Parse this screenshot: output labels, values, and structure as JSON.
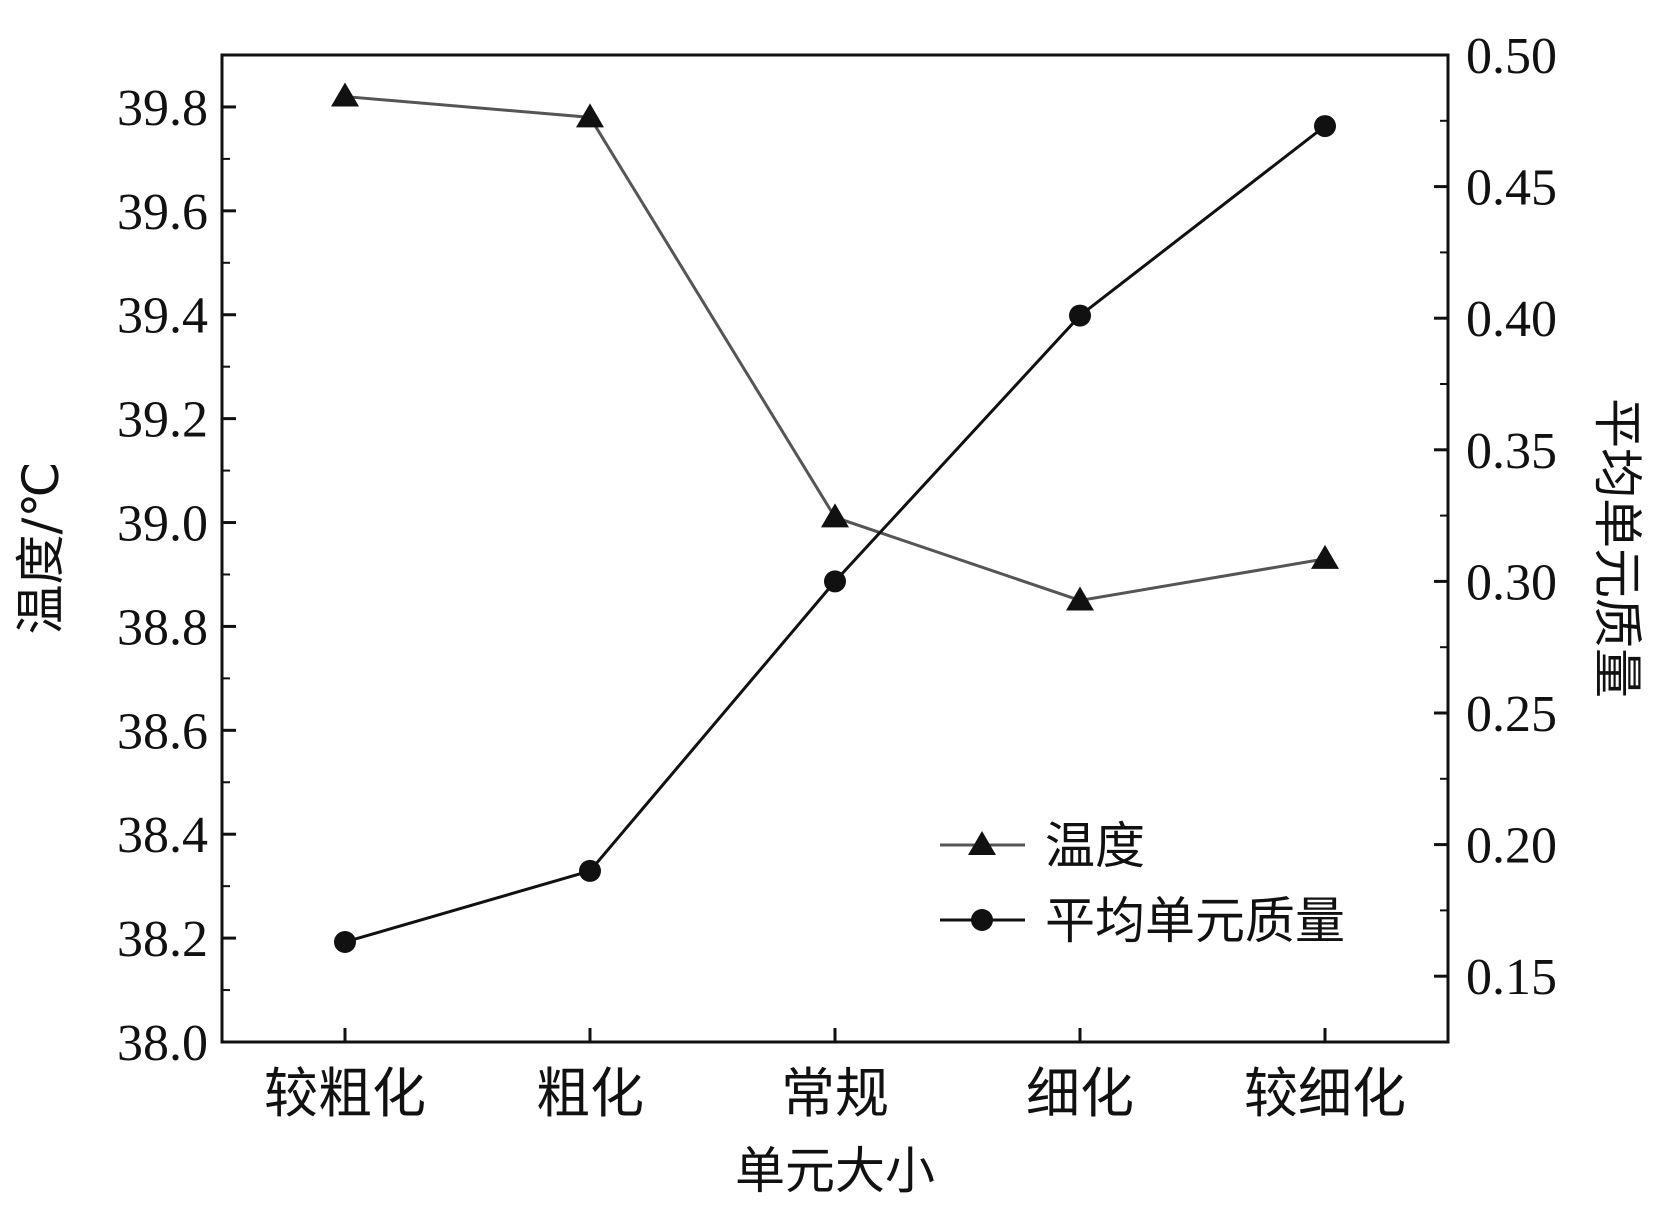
{
  "chart_data": {
    "type": "line",
    "title": "",
    "categories": [
      "较粗化",
      "粗化",
      "常规",
      "细化",
      "较细化"
    ],
    "xlabel": "单元大小",
    "ylabel_left": "温度/℃",
    "ylabel_right": "平均单元质量",
    "ylim_left": [
      38.0,
      39.9
    ],
    "ylim_right": [
      0.125,
      0.5
    ],
    "yticks_left": [
      "38.0",
      "38.2",
      "38.4",
      "38.6",
      "38.8",
      "39.0",
      "39.2",
      "39.4",
      "39.6",
      "39.8"
    ],
    "yticks_right": [
      "0.15",
      "0.20",
      "0.25",
      "0.30",
      "0.35",
      "0.40",
      "0.45",
      "0.50"
    ],
    "grid": false,
    "legend_position": "bottom-right",
    "series": [
      {
        "name": "温度",
        "axis": "left",
        "marker": "triangle",
        "color": "#555555",
        "values": [
          39.82,
          39.78,
          39.01,
          38.85,
          38.93
        ]
      },
      {
        "name": "平均单元质量",
        "axis": "right",
        "marker": "circle",
        "color": "#111111",
        "values": [
          0.163,
          0.19,
          0.3,
          0.401,
          0.473
        ]
      }
    ]
  }
}
